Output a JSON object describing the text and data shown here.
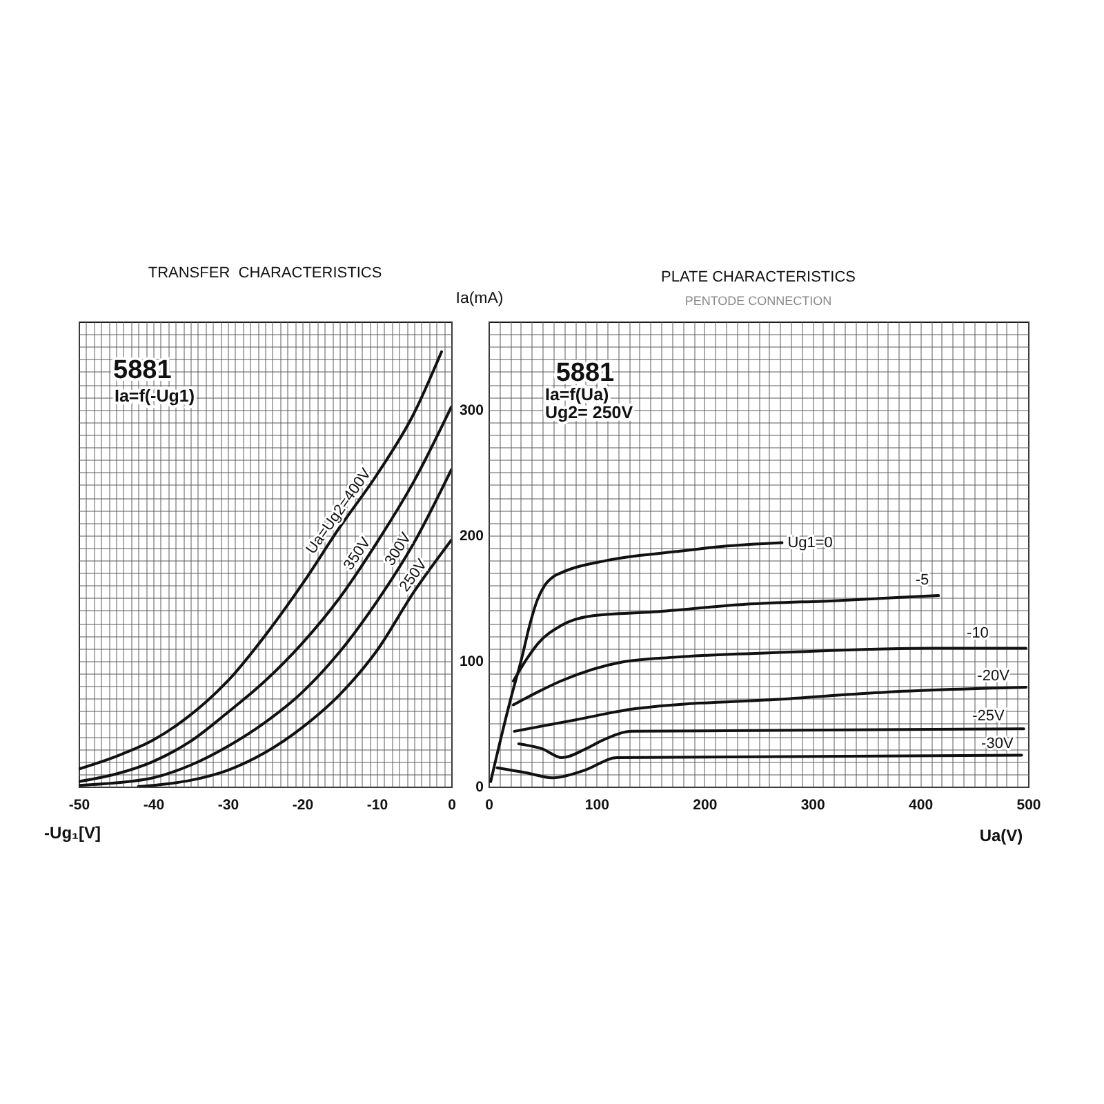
{
  "chart_data": [
    {
      "type": "line",
      "title": "TRANSFER  CHARACTERISTICS",
      "xlabel": "-Ug₁[V]",
      "ylabel": "Ia(mA)",
      "annotations": [
        "5881",
        "Ia=f(-Ug1)"
      ],
      "xlim": [
        -50,
        0
      ],
      "ylim": [
        0,
        370
      ],
      "grid": true,
      "xticks": [
        -50,
        {
          "value": -49,
          "label": null
        },
        {
          "value": -48,
          "label": null
        },
        {
          "value": -47,
          "label": null
        },
        {
          "value": -46,
          "label": null
        },
        {
          "value": -45,
          "label": null
        },
        {
          "value": -44,
          "label": null
        },
        {
          "value": -43,
          "label": null
        },
        {
          "value": -42,
          "label": null
        },
        {
          "value": -41,
          "label": null
        },
        -40,
        {
          "value": -39,
          "label": null
        },
        {
          "value": -38,
          "label": null
        },
        {
          "value": -37,
          "label": null
        },
        {
          "value": -36,
          "label": null
        },
        {
          "value": -35,
          "label": null
        },
        {
          "value": -34,
          "label": null
        },
        {
          "value": -33,
          "label": null
        },
        {
          "value": -32,
          "label": null
        },
        {
          "value": -31,
          "label": null
        },
        -30,
        {
          "value": -29,
          "label": null
        },
        {
          "value": -28,
          "label": null
        },
        {
          "value": -27,
          "label": null
        },
        {
          "value": -26,
          "label": null
        },
        {
          "value": -25,
          "label": null
        },
        {
          "value": -24,
          "label": null
        },
        {
          "value": -23,
          "label": null
        },
        {
          "value": -22,
          "label": null
        },
        {
          "value": -21,
          "label": null
        },
        -20,
        {
          "value": -19,
          "label": null
        },
        {
          "value": -18,
          "label": null
        },
        {
          "value": -17,
          "label": null
        },
        {
          "value": -16,
          "label": null
        },
        {
          "value": -15,
          "label": null
        },
        {
          "value": -14,
          "label": null
        },
        {
          "value": -13,
          "label": null
        },
        {
          "value": -12,
          "label": null
        },
        {
          "value": -11,
          "label": null
        },
        -10,
        {
          "value": -9,
          "label": null
        },
        {
          "value": -8,
          "label": null
        },
        {
          "value": -7,
          "label": null
        },
        {
          "value": -6,
          "label": null
        },
        {
          "value": -5,
          "label": null
        },
        {
          "value": -4,
          "label": null
        },
        {
          "value": -3,
          "label": null
        },
        {
          "value": -2,
          "label": null
        },
        {
          "value": -1,
          "label": null
        },
        0
      ],
      "yticks": [
        0,
        {
          "value": 10,
          "label": null
        },
        {
          "value": 20,
          "label": null
        },
        {
          "value": 30,
          "label": null
        },
        {
          "value": 40,
          "label": null
        },
        {
          "value": 50,
          "label": null
        },
        {
          "value": 60,
          "label": null
        },
        {
          "value": 70,
          "label": null
        },
        {
          "value": 80,
          "label": null
        },
        {
          "value": 90,
          "label": null
        },
        100,
        {
          "value": 110,
          "label": null
        },
        {
          "value": 120,
          "label": null
        },
        {
          "value": 130,
          "label": null
        },
        {
          "value": 140,
          "label": null
        },
        {
          "value": 150,
          "label": null
        },
        {
          "value": 160,
          "label": null
        },
        {
          "value": 170,
          "label": null
        },
        {
          "value": 180,
          "label": null
        },
        {
          "value": 190,
          "label": null
        },
        200,
        {
          "value": 210,
          "label": null
        },
        {
          "value": 220,
          "label": null
        },
        {
          "value": 230,
          "label": null
        },
        {
          "value": 240,
          "label": null
        },
        {
          "value": 250,
          "label": null
        },
        {
          "value": 260,
          "label": null
        },
        {
          "value": 270,
          "label": null
        },
        {
          "value": 280,
          "label": null
        },
        {
          "value": 290,
          "label": null
        },
        300,
        {
          "value": 310,
          "label": null
        },
        {
          "value": 320,
          "label": null
        },
        {
          "value": 330,
          "label": null
        },
        {
          "value": 340,
          "label": null
        },
        {
          "value": 350,
          "label": null
        },
        {
          "value": 360,
          "label": null
        }
      ],
      "series": [
        {
          "name": "Ua=Ug2=400V",
          "color": "#111111",
          "x": [
            -50,
            -45,
            -40,
            -35,
            -30,
            -25,
            -20,
            -15,
            -10,
            -5,
            -1.3
          ],
          "values": [
            14,
            24,
            37,
            57,
            84,
            120,
            161,
            206,
            248,
            297,
            346
          ]
        },
        {
          "name": "350V",
          "color": "#111111",
          "x": [
            -50,
            -45,
            -40,
            -35,
            -30,
            -25,
            -20,
            -15,
            -10,
            -5,
            0
          ],
          "values": [
            4,
            10,
            20,
            36,
            59,
            84,
            114,
            150,
            194,
            243,
            302
          ]
        },
        {
          "name": "300V",
          "color": "#111111",
          "x": [
            -50,
            -45,
            -40,
            -35,
            -30,
            -25,
            -20,
            -15,
            -10,
            -5,
            0
          ],
          "values": [
            1,
            3,
            7,
            17,
            32,
            51,
            75,
            107,
            147,
            194,
            252
          ]
        },
        {
          "name": "250V",
          "color": "#111111",
          "x": [
            -42,
            -40,
            -35,
            -30,
            -25,
            -20,
            -15,
            -10,
            -5,
            0
          ],
          "values": [
            0,
            1,
            5,
            13,
            27,
            47,
            73,
            108,
            155,
            196
          ]
        }
      ]
    },
    {
      "type": "line",
      "title": "PLATE CHARACTERISTICS",
      "subtitle": "PENTODE CONNECTION",
      "xlabel": "Ua(V)",
      "annotations": [
        "5881",
        "Ia=f(Ua)",
        "Ug2= 250V"
      ],
      "xlim": [
        0,
        500
      ],
      "ylim": [
        0,
        370
      ],
      "grid": true,
      "tick_labels": "x",
      "xticks": [
        0,
        {
          "value": 10,
          "label": null
        },
        {
          "value": 20,
          "label": null
        },
        {
          "value": 30,
          "label": null
        },
        {
          "value": 40,
          "label": null
        },
        {
          "value": 50,
          "label": null
        },
        {
          "value": 60,
          "label": null
        },
        {
          "value": 70,
          "label": null
        },
        {
          "value": 80,
          "label": null
        },
        {
          "value": 90,
          "label": null
        },
        100,
        {
          "value": 110,
          "label": null
        },
        {
          "value": 120,
          "label": null
        },
        {
          "value": 130,
          "label": null
        },
        {
          "value": 140,
          "label": null
        },
        {
          "value": 150,
          "label": null
        },
        {
          "value": 160,
          "label": null
        },
        {
          "value": 170,
          "label": null
        },
        {
          "value": 180,
          "label": null
        },
        {
          "value": 190,
          "label": null
        },
        200,
        {
          "value": 210,
          "label": null
        },
        {
          "value": 220,
          "label": null
        },
        {
          "value": 230,
          "label": null
        },
        {
          "value": 240,
          "label": null
        },
        {
          "value": 250,
          "label": null
        },
        {
          "value": 260,
          "label": null
        },
        {
          "value": 270,
          "label": null
        },
        {
          "value": 280,
          "label": null
        },
        {
          "value": 290,
          "label": null
        },
        300,
        {
          "value": 310,
          "label": null
        },
        {
          "value": 320,
          "label": null
        },
        {
          "value": 330,
          "label": null
        },
        {
          "value": 340,
          "label": null
        },
        {
          "value": 350,
          "label": null
        },
        {
          "value": 360,
          "label": null
        },
        {
          "value": 370,
          "label": null
        },
        {
          "value": 380,
          "label": null
        },
        {
          "value": 390,
          "label": null
        },
        400,
        {
          "value": 410,
          "label": null
        },
        {
          "value": 420,
          "label": null
        },
        {
          "value": 430,
          "label": null
        },
        {
          "value": 440,
          "label": null
        },
        {
          "value": 450,
          "label": null
        },
        {
          "value": 460,
          "label": null
        },
        {
          "value": 470,
          "label": null
        },
        {
          "value": 480,
          "label": null
        },
        {
          "value": 490,
          "label": null
        },
        500
      ],
      "yticks": [
        0,
        {
          "value": 10,
          "label": null
        },
        {
          "value": 20,
          "label": null
        },
        {
          "value": 30,
          "label": null
        },
        {
          "value": 40,
          "label": null
        },
        {
          "value": 50,
          "label": null
        },
        {
          "value": 60,
          "label": null
        },
        {
          "value": 70,
          "label": null
        },
        {
          "value": 80,
          "label": null
        },
        {
          "value": 90,
          "label": null
        },
        100,
        {
          "value": 110,
          "label": null
        },
        {
          "value": 120,
          "label": null
        },
        {
          "value": 130,
          "label": null
        },
        {
          "value": 140,
          "label": null
        },
        {
          "value": 150,
          "label": null
        },
        {
          "value": 160,
          "label": null
        },
        {
          "value": 170,
          "label": null
        },
        {
          "value": 180,
          "label": null
        },
        {
          "value": 190,
          "label": null
        },
        200,
        {
          "value": 210,
          "label": null
        },
        {
          "value": 220,
          "label": null
        },
        {
          "value": 230,
          "label": null
        },
        {
          "value": 240,
          "label": null
        },
        {
          "value": 250,
          "label": null
        },
        {
          "value": 260,
          "label": null
        },
        {
          "value": 270,
          "label": null
        },
        {
          "value": 280,
          "label": null
        },
        {
          "value": 290,
          "label": null
        },
        300,
        {
          "value": 310,
          "label": null
        },
        {
          "value": 320,
          "label": null
        },
        {
          "value": 330,
          "label": null
        },
        {
          "value": 340,
          "label": null
        },
        {
          "value": 350,
          "label": null
        },
        {
          "value": 360,
          "label": null
        }
      ],
      "series": [
        {
          "name": "Ug1=0",
          "color": "#111111",
          "x": [
            2,
            8,
            20,
            31,
            38,
            45,
            52,
            60,
            67,
            110,
            174,
            216,
            272
          ],
          "values": [
            4,
            26,
            68,
            103,
            128,
            148,
            160,
            167,
            170,
            180,
            187,
            191,
            194
          ]
        },
        {
          "name": "-5",
          "color": "#111111",
          "x": [
            23,
            35,
            46,
            67,
            97,
            153,
            238,
            323,
            417
          ],
          "values": [
            84,
            101,
            114,
            128,
            136,
            139,
            145,
            148,
            152
          ]
        },
        {
          "name": "-10",
          "color": "#111111",
          "x": [
            23,
            45,
            67,
            123,
            174,
            280,
            408,
            498
          ],
          "values": [
            65,
            75,
            84,
            99,
            103,
            107,
            110,
            110
          ]
        },
        {
          "name": "-20V",
          "color": "#111111",
          "x": [
            24,
            80,
            136,
            280,
            366,
            498
          ],
          "values": [
            44,
            53,
            62,
            70,
            75,
            79
          ]
        },
        {
          "name": "-25V",
          "color": "#111111",
          "x": [
            28,
            50,
            68,
            90,
            106,
            133,
            496
          ],
          "values": [
            34,
            30,
            23,
            30,
            37,
            44,
            46
          ]
        },
        {
          "name": "-30V",
          "color": "#111111",
          "x": [
            8,
            35,
            59,
            89,
            119,
            494
          ],
          "values": [
            15,
            11,
            7,
            13,
            23,
            25
          ]
        }
      ]
    }
  ]
}
